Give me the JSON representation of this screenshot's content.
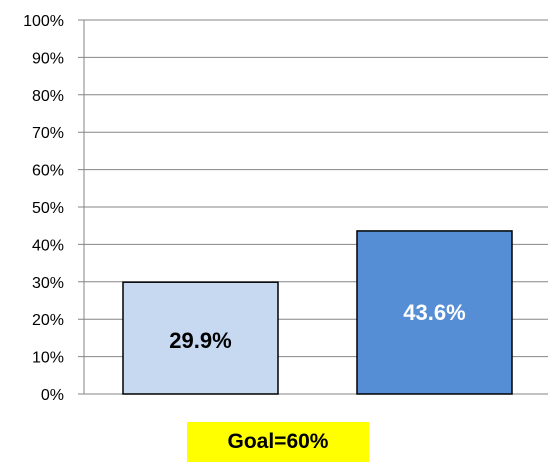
{
  "chart_data": {
    "type": "bar",
    "categories": [
      "",
      ""
    ],
    "values": [
      29.9,
      43.6
    ],
    "value_labels": [
      "29.9%",
      "43.6%"
    ],
    "bar_colors": [
      "#c6d9f1",
      "#558ed5"
    ],
    "label_colors": [
      "#000000",
      "#ffffff"
    ],
    "ylim": [
      0,
      100
    ],
    "yticks": [
      0,
      10,
      20,
      30,
      40,
      50,
      60,
      70,
      80,
      90,
      100
    ],
    "ytick_labels": [
      "0%",
      "10%",
      "20%",
      "30%",
      "40%",
      "50%",
      "60%",
      "70%",
      "80%",
      "90%",
      "100%"
    ],
    "grid": true,
    "title": "",
    "xlabel": "",
    "ylabel": ""
  },
  "annotation": {
    "text": "Goal=60%",
    "background": "#ffff00"
  }
}
